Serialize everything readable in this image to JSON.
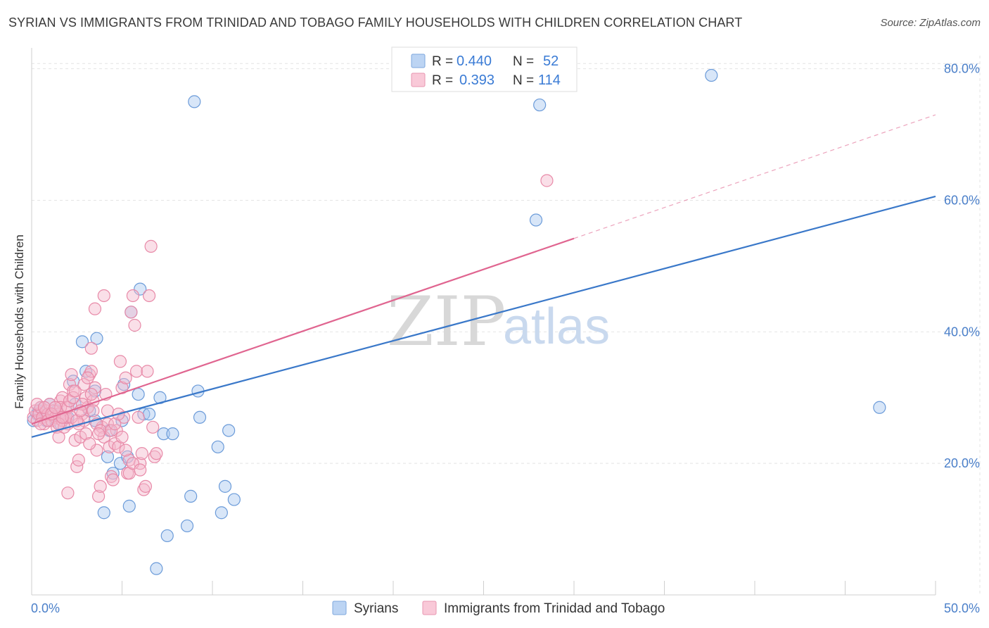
{
  "header": {
    "title": "SYRIAN VS IMMIGRANTS FROM TRINIDAD AND TOBAGO FAMILY HOUSEHOLDS WITH CHILDREN CORRELATION CHART",
    "source": "Source: ZipAtlas.com"
  },
  "watermark": {
    "part1": "ZIP",
    "part2": "atlas"
  },
  "legend": {
    "r_label": "R =",
    "n_label": "N =",
    "rows": [
      {
        "r": "0.440",
        "n": "52",
        "color": "#a9c8f0"
      },
      {
        "r": "0.393",
        "n": "114",
        "color": "#f5b8cc"
      }
    ]
  },
  "bottom_legend": [
    {
      "label": "Syrians",
      "color": "#a9c8f0"
    },
    {
      "label": "Immigrants from Trinidad and Tobago",
      "color": "#f5b8cc"
    }
  ],
  "chart_data": {
    "type": "scatter",
    "xlabel": "",
    "ylabel": "Family Households with Children",
    "xlim": [
      0,
      50
    ],
    "ylim": [
      0,
      82
    ],
    "x_tick_labels": [
      {
        "value": 0,
        "label": "0.0%"
      },
      {
        "value": 50,
        "label": "50.0%"
      }
    ],
    "y_tick_labels": [
      {
        "value": 20,
        "label": "20.0%"
      },
      {
        "value": 40,
        "label": "40.0%"
      },
      {
        "value": 60,
        "label": "60.0%"
      },
      {
        "value": 80,
        "label": "80.0%"
      }
    ],
    "grid": true,
    "legend_position": "top-center",
    "series": [
      {
        "name": "Syrians",
        "color": "#a9c8f0",
        "stroke": "#6b9bd9",
        "trend": {
          "x": [
            0,
            50
          ],
          "y": [
            24.0,
            60.6
          ],
          "color": "#3a78c9",
          "dashed_from": null
        },
        "points": [
          [
            0.1,
            26.5
          ],
          [
            0.3,
            27.5
          ],
          [
            0.4,
            28.0
          ],
          [
            0.5,
            28.5
          ],
          [
            0.6,
            27.0
          ],
          [
            0.8,
            26.5
          ],
          [
            1.0,
            29.0
          ],
          [
            1.2,
            27.5
          ],
          [
            1.4,
            28.0
          ],
          [
            1.6,
            26.0
          ],
          [
            2.0,
            27.0
          ],
          [
            2.3,
            32.5
          ],
          [
            2.4,
            29.0
          ],
          [
            2.8,
            38.5
          ],
          [
            3.0,
            34.0
          ],
          [
            3.2,
            28.0
          ],
          [
            3.5,
            26.5
          ],
          [
            3.5,
            31.0
          ],
          [
            3.6,
            39.0
          ],
          [
            4.0,
            12.5
          ],
          [
            4.2,
            21.0
          ],
          [
            4.3,
            25.0
          ],
          [
            4.5,
            18.5
          ],
          [
            4.9,
            20.0
          ],
          [
            5.0,
            26.5
          ],
          [
            5.1,
            32.0
          ],
          [
            5.3,
            21.0
          ],
          [
            5.4,
            13.5
          ],
          [
            5.5,
            43.0
          ],
          [
            5.9,
            30.5
          ],
          [
            6.0,
            46.5
          ],
          [
            6.2,
            27.5
          ],
          [
            6.5,
            27.5
          ],
          [
            6.9,
            4.0
          ],
          [
            7.1,
            30.0
          ],
          [
            7.3,
            24.5
          ],
          [
            7.5,
            9.0
          ],
          [
            7.8,
            24.5
          ],
          [
            8.6,
            10.5
          ],
          [
            8.8,
            15.0
          ],
          [
            9.0,
            75.0
          ],
          [
            9.2,
            31.0
          ],
          [
            9.3,
            27.0
          ],
          [
            10.3,
            22.5
          ],
          [
            10.5,
            12.5
          ],
          [
            10.7,
            16.5
          ],
          [
            10.9,
            25.0
          ],
          [
            11.2,
            14.5
          ],
          [
            27.9,
            57.0
          ],
          [
            28.1,
            74.5
          ],
          [
            37.6,
            79.0
          ],
          [
            46.9,
            28.5
          ]
        ]
      },
      {
        "name": "Immigrants from Trinidad and Tobago",
        "color": "#f5b8cc",
        "stroke": "#e88aa8",
        "trend": {
          "x": [
            0,
            50
          ],
          "y": [
            26.0,
            73.0
          ],
          "color": "#e06590",
          "dashed_from": 30
        },
        "points": [
          [
            0.1,
            27.0
          ],
          [
            0.2,
            28.0
          ],
          [
            0.3,
            26.5
          ],
          [
            0.4,
            27.5
          ],
          [
            0.5,
            28.5
          ],
          [
            0.6,
            27.0
          ],
          [
            0.7,
            26.0
          ],
          [
            0.8,
            28.0
          ],
          [
            0.9,
            27.5
          ],
          [
            1.0,
            29.0
          ],
          [
            1.1,
            26.5
          ],
          [
            1.2,
            28.0
          ],
          [
            1.3,
            27.0
          ],
          [
            1.4,
            25.5
          ],
          [
            1.5,
            24.0
          ],
          [
            1.6,
            29.5
          ],
          [
            1.7,
            30.0
          ],
          [
            1.8,
            27.0
          ],
          [
            1.9,
            28.5
          ],
          [
            2.0,
            26.0
          ],
          [
            2.1,
            32.0
          ],
          [
            2.2,
            33.5
          ],
          [
            2.3,
            31.0
          ],
          [
            2.4,
            23.5
          ],
          [
            2.5,
            19.5
          ],
          [
            2.6,
            20.5
          ],
          [
            2.7,
            24.0
          ],
          [
            2.8,
            27.5
          ],
          [
            2.9,
            26.5
          ],
          [
            3.0,
            30.0
          ],
          [
            3.1,
            28.5
          ],
          [
            3.2,
            33.5
          ],
          [
            3.3,
            34.0
          ],
          [
            3.4,
            29.5
          ],
          [
            3.5,
            31.5
          ],
          [
            3.6,
            22.0
          ],
          [
            3.7,
            15.0
          ],
          [
            3.8,
            16.5
          ],
          [
            3.9,
            25.5
          ],
          [
            4.0,
            24.0
          ],
          [
            4.1,
            30.5
          ],
          [
            4.2,
            26.0
          ],
          [
            4.3,
            22.5
          ],
          [
            4.4,
            18.0
          ],
          [
            4.5,
            17.5
          ],
          [
            4.6,
            23.0
          ],
          [
            4.7,
            25.0
          ],
          [
            4.8,
            22.5
          ],
          [
            4.9,
            35.5
          ],
          [
            5.0,
            31.5
          ],
          [
            5.1,
            27.0
          ],
          [
            5.2,
            33.0
          ],
          [
            5.3,
            18.5
          ],
          [
            5.4,
            20.5
          ],
          [
            5.5,
            43.0
          ],
          [
            5.6,
            45.5
          ],
          [
            5.7,
            41.0
          ],
          [
            5.8,
            34.0
          ],
          [
            5.9,
            27.0
          ],
          [
            6.0,
            20.0
          ],
          [
            6.1,
            21.5
          ],
          [
            6.2,
            16.0
          ],
          [
            6.3,
            16.5
          ],
          [
            6.4,
            34.0
          ],
          [
            6.5,
            45.5
          ],
          [
            6.6,
            53.0
          ],
          [
            6.7,
            25.5
          ],
          [
            6.8,
            21.0
          ],
          [
            6.9,
            21.5
          ],
          [
            3.3,
            37.5
          ],
          [
            3.5,
            43.5
          ],
          [
            4.0,
            45.5
          ],
          [
            2.6,
            26.0
          ],
          [
            2.8,
            29.0
          ],
          [
            3.0,
            24.5
          ],
          [
            3.2,
            23.0
          ],
          [
            3.4,
            28.0
          ],
          [
            3.6,
            26.0
          ],
          [
            3.8,
            25.0
          ],
          [
            4.2,
            28.0
          ],
          [
            1.5,
            27.5
          ],
          [
            1.6,
            28.5
          ],
          [
            1.7,
            26.5
          ],
          [
            1.8,
            25.5
          ],
          [
            1.9,
            27.0
          ],
          [
            2.0,
            28.5
          ],
          [
            2.1,
            29.5
          ],
          [
            2.2,
            27.0
          ],
          [
            2.3,
            30.0
          ],
          [
            2.4,
            31.0
          ],
          [
            2.5,
            26.5
          ],
          [
            2.7,
            28.0
          ],
          [
            2.9,
            32.0
          ],
          [
            3.1,
            33.0
          ],
          [
            3.3,
            30.5
          ],
          [
            3.7,
            24.5
          ],
          [
            4.4,
            25.0
          ],
          [
            4.6,
            26.0
          ],
          [
            4.8,
            27.5
          ],
          [
            5.0,
            24.0
          ],
          [
            5.2,
            22.0
          ],
          [
            5.4,
            18.5
          ],
          [
            5.6,
            20.0
          ],
          [
            6.0,
            19.0
          ],
          [
            0.3,
            29.0
          ],
          [
            0.5,
            26.0
          ],
          [
            0.7,
            28.5
          ],
          [
            0.9,
            26.5
          ],
          [
            1.1,
            27.5
          ],
          [
            1.3,
            28.5
          ],
          [
            1.5,
            26.0
          ],
          [
            1.7,
            27.0
          ],
          [
            28.5,
            63.0
          ],
          [
            2.0,
            15.5
          ]
        ]
      }
    ]
  }
}
